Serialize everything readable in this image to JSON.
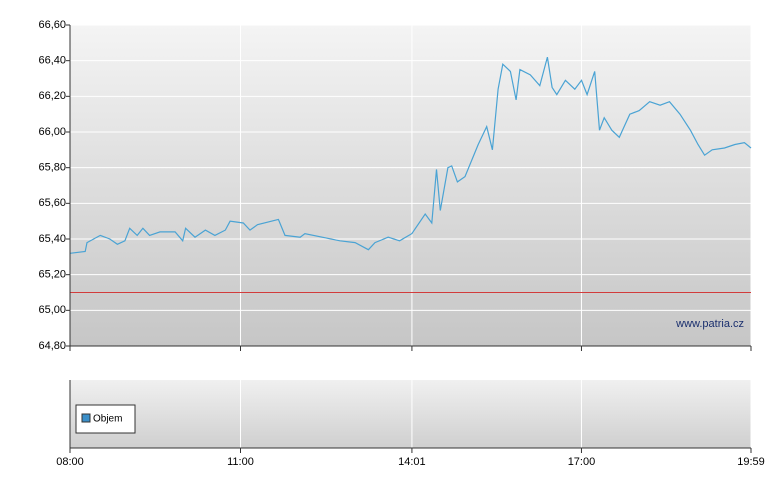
{
  "chart_data": [
    {
      "type": "line",
      "x": [
        "08:00",
        "08:16",
        "08:18",
        "08:32",
        "08:42",
        "08:50",
        "08:58",
        "09:03",
        "09:11",
        "09:17",
        "09:24",
        "09:35",
        "09:51",
        "09:59",
        "10:02",
        "10:12",
        "10:23",
        "10:33",
        "10:44",
        "10:49",
        "11:03",
        "11:10",
        "11:18",
        "11:40",
        "11:47",
        "12:03",
        "12:08",
        "12:45",
        "13:01",
        "13:15",
        "13:22",
        "13:36",
        "13:48",
        "14:01",
        "14:15",
        "14:22",
        "14:27",
        "14:31",
        "14:39",
        "14:43",
        "14:49",
        "14:57",
        "15:11",
        "15:20",
        "15:26",
        "15:32",
        "15:37",
        "15:45",
        "15:51",
        "15:55",
        "16:06",
        "16:16",
        "16:24",
        "16:29",
        "16:34",
        "16:43",
        "16:53",
        "17:00",
        "17:06",
        "17:14",
        "17:19",
        "17:24",
        "17:32",
        "17:40",
        "17:51",
        "18:01",
        "18:12",
        "18:23",
        "18:33",
        "18:44",
        "18:55",
        "19:03",
        "19:10",
        "19:18",
        "19:31",
        "19:42",
        "19:52",
        "19:59"
      ],
      "series": [
        {
          "color": "#4aa3d4",
          "values": [
            65.32,
            65.33,
            65.38,
            65.42,
            65.4,
            65.37,
            65.39,
            65.46,
            65.42,
            65.46,
            65.42,
            65.44,
            65.44,
            65.39,
            65.46,
            65.41,
            65.45,
            65.42,
            65.45,
            65.5,
            65.49,
            65.45,
            65.48,
            65.51,
            65.42,
            65.41,
            65.43,
            65.39,
            65.38,
            65.34,
            65.38,
            65.41,
            65.39,
            65.43,
            65.54,
            65.49,
            65.79,
            65.56,
            65.8,
            65.81,
            65.72,
            65.75,
            65.93,
            66.03,
            65.9,
            66.24,
            66.38,
            66.34,
            66.18,
            66.35,
            66.32,
            66.26,
            66.42,
            66.25,
            66.21,
            66.29,
            66.24,
            66.29,
            66.21,
            66.34,
            66.01,
            66.08,
            66.01,
            65.97,
            66.1,
            66.12,
            66.17,
            66.15,
            66.17,
            66.1,
            66.01,
            65.93,
            65.87,
            65.9,
            65.91,
            65.93,
            65.94,
            65.91
          ]
        }
      ],
      "xlim": [
        "08:00",
        "19:59"
      ],
      "xticks": [
        "08:00",
        "11:00",
        "14:01",
        "17:00",
        "19:59"
      ],
      "ylim": [
        64.8,
        66.6
      ],
      "yticks": [
        {
          "value": 64.8,
          "label": "64,80"
        },
        {
          "value": 65.0,
          "label": "65,00"
        },
        {
          "value": 65.2,
          "label": "65,20"
        },
        {
          "value": 65.4,
          "label": "65,40"
        },
        {
          "value": 65.6,
          "label": "65,60"
        },
        {
          "value": 65.8,
          "label": "65,80"
        },
        {
          "value": 66.0,
          "label": "66,00"
        },
        {
          "value": 66.2,
          "label": "66,20"
        },
        {
          "value": 66.4,
          "label": "66,40"
        },
        {
          "value": 66.6,
          "label": "66,60"
        }
      ],
      "reference_line": {
        "value": 65.1,
        "color": "#d23c3c"
      },
      "grid": true,
      "watermark": "www.patria.cz"
    },
    {
      "type": "bar",
      "series": [
        {
          "name": "Objem",
          "color": "#3b8fc9"
        }
      ],
      "legend": "lower-left",
      "grid": true
    }
  ]
}
